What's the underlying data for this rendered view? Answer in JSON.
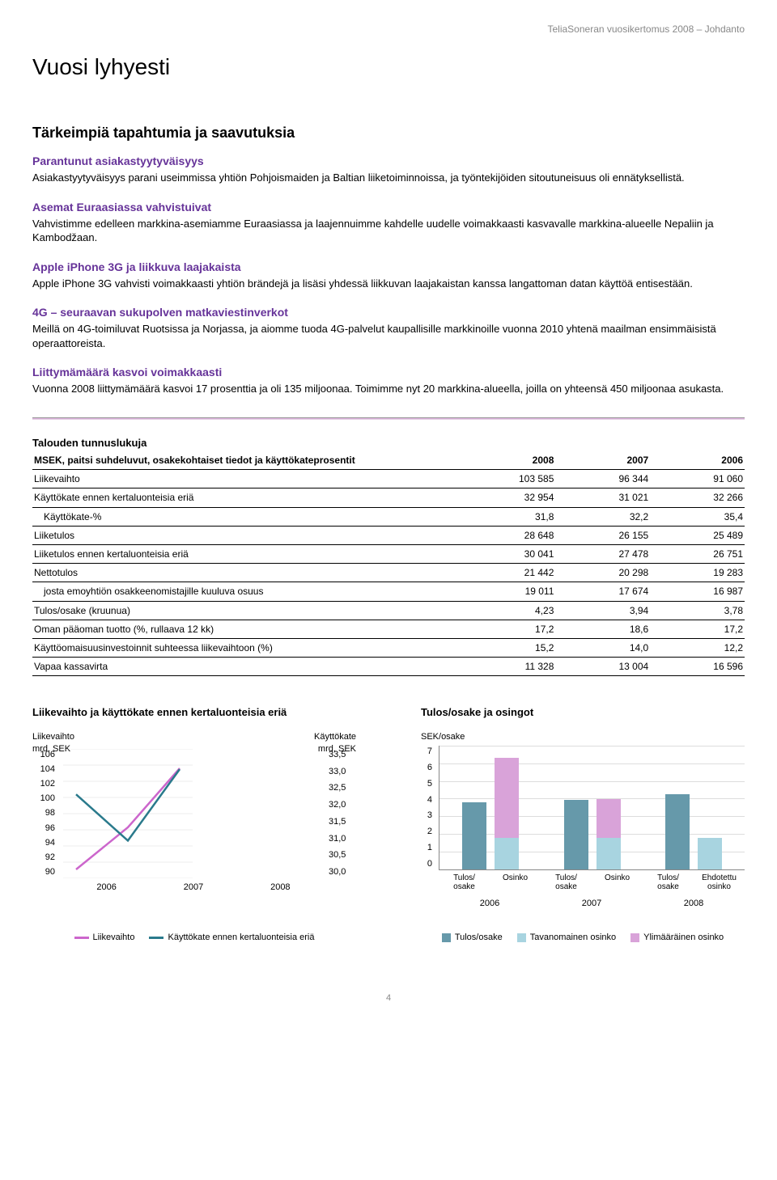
{
  "header": "TeliaSoneran vuosikertomus 2008 – Johdanto",
  "page_title": "Vuosi lyhyesti",
  "section_heading": "Tärkeimpiä tapahtumia ja saavutuksia",
  "blocks": [
    {
      "title": "Parantunut asiakastyytyväisyys",
      "body": "Asiakastyytyväisyys parani useimmissa yhtiön Pohjoismaiden ja Baltian liiketoiminnoissa, ja työntekijöiden sitoutuneisuus oli ennätyksellistä."
    },
    {
      "title": "Asemat Euraasiassa vahvistuivat",
      "body": "Vahvistimme edelleen markkina-asemiamme Euraasiassa ja laajennuimme kahdelle uudelle voimakkaasti kasvavalle markkina-alueelle Nepaliin ja Kambodžaan."
    },
    {
      "title": "Apple iPhone 3G ja liikkuva laajakaista",
      "body": "Apple iPhone 3G vahvisti voimakkaasti yhtiön brändejä ja lisäsi yhdessä liikkuvan laajakaistan kanssa langattoman datan käyttöä entisestään."
    },
    {
      "title": "4G – seuraavan sukupolven matkaviestinverkot",
      "body": "Meillä on 4G-toimiluvat Ruotsissa ja Norjassa, ja aiomme tuoda 4G-palvelut kaupallisille markkinoille vuonna 2010 yhtenä maailman ensimmäisistä operaattoreista."
    },
    {
      "title": "Liittymämäärä kasvoi voimakkaasti",
      "body": "Vuonna 2008 liittymämäärä kasvoi 17 prosenttia ja oli 135 miljoonaa. Toimimme nyt 20 markkina-alueella, joilla on yhteensä 450 miljoonaa asukasta."
    }
  ],
  "fin": {
    "title": "Talouden tunnuslukuja",
    "subtitle": "MSEK, paitsi suhdeluvut, osakekohtaiset tiedot ja käyttökateprosentit",
    "years": [
      "2008",
      "2007",
      "2006"
    ],
    "rows": [
      {
        "label": "Liikevaihto",
        "vals": [
          "103 585",
          "96 344",
          "91 060"
        ]
      },
      {
        "label": "Käyttökate ennen kertaluonteisia eriä",
        "vals": [
          "32 954",
          "31 021",
          "32 266"
        ]
      },
      {
        "label": "Käyttökate-%",
        "indent": true,
        "vals": [
          "31,8",
          "32,2",
          "35,4"
        ]
      },
      {
        "label": "Liiketulos",
        "vals": [
          "28 648",
          "26 155",
          "25 489"
        ]
      },
      {
        "label": "Liiketulos ennen kertaluonteisia eriä",
        "vals": [
          "30 041",
          "27 478",
          "26 751"
        ]
      },
      {
        "label": "Nettotulos",
        "vals": [
          "21 442",
          "20 298",
          "19 283"
        ]
      },
      {
        "label": "josta emoyhtiön osakkeenomistajille kuuluva osuus",
        "indent": true,
        "vals": [
          "19 011",
          "17 674",
          "16 987"
        ]
      },
      {
        "label": "Tulos/osake (kruunua)",
        "vals": [
          "4,23",
          "3,94",
          "3,78"
        ]
      },
      {
        "label": "Oman pääoman tuotto (%, rullaava 12 kk)",
        "vals": [
          "17,2",
          "18,6",
          "17,2"
        ]
      },
      {
        "label": "Käyttöomaisuusinvestoinnit suhteessa liikevaihtoon (%)",
        "vals": [
          "15,2",
          "14,0",
          "12,2"
        ]
      },
      {
        "label": "Vapaa kassavirta",
        "vals": [
          "11 328",
          "13 004",
          "16 596"
        ]
      }
    ]
  },
  "line_chart": {
    "title": "Liikevaihto ja käyttökate ennen kertaluonteisia eriä",
    "left_axis": {
      "title": "Liikevaihto\nmrd. SEK",
      "ticks": [
        "106",
        "104",
        "102",
        "100",
        "98",
        "96",
        "94",
        "92",
        "90"
      ],
      "min": 90,
      "max": 106
    },
    "right_axis": {
      "title": "Käyttökate\nmrd. SEK",
      "ticks": [
        "33,5",
        "33,0",
        "32,5",
        "32,0",
        "31,5",
        "31,0",
        "30,5",
        "30,0"
      ],
      "min": 30.0,
      "max": 33.5
    },
    "x_labels": [
      "2006",
      "2007",
      "2008"
    ],
    "series": [
      {
        "name": "Liikevaihto",
        "color": "#cc66cc",
        "axis": "left",
        "values": [
          91.1,
          96.3,
          103.6
        ]
      },
      {
        "name": "Käyttökate ennen kertaluonteisia eriä",
        "color": "#2a7a8c",
        "axis": "right",
        "values": [
          32.27,
          31.02,
          32.95
        ]
      }
    ],
    "legend": [
      {
        "label": "Liikevaihto",
        "color": "#cc66cc"
      },
      {
        "label": "Käyttökate ennen kertaluonteisia eriä",
        "color": "#2a7a8c"
      }
    ]
  },
  "bar_chart": {
    "title": "Tulos/osake ja osingot",
    "y_axis": {
      "title": "SEK/osake",
      "ticks": [
        "7",
        "6",
        "5",
        "4",
        "3",
        "2",
        "1",
        "0"
      ],
      "min": 0,
      "max": 7
    },
    "years": [
      "2006",
      "2007",
      "2008"
    ],
    "groups": [
      {
        "year": "2006",
        "bars": [
          {
            "label": "Tulos/\nosake",
            "value": 3.78,
            "color": "#6699aa"
          },
          {
            "label": "Osinko",
            "value": 6.3,
            "segments": [
              {
                "v": 1.8,
                "color": "#a8d4e0"
              },
              {
                "v": 4.5,
                "color": "#d9a3d9"
              }
            ]
          }
        ]
      },
      {
        "year": "2007",
        "bars": [
          {
            "label": "Tulos/\nosake",
            "value": 3.94,
            "color": "#6699aa"
          },
          {
            "label": "Osinko",
            "value": 4.0,
            "segments": [
              {
                "v": 1.8,
                "color": "#a8d4e0"
              },
              {
                "v": 2.2,
                "color": "#d9a3d9"
              }
            ]
          }
        ]
      },
      {
        "year": "2008",
        "bars": [
          {
            "label": "Tulos/\nosake",
            "value": 4.23,
            "color": "#6699aa"
          },
          {
            "label": "Ehdotettu\nosinko",
            "value": 1.8,
            "color": "#a8d4e0"
          }
        ]
      }
    ],
    "legend": [
      {
        "label": "Tulos/osake",
        "color": "#6699aa"
      },
      {
        "label": "Tavanomainen osinko",
        "color": "#a8d4e0"
      },
      {
        "label": "Ylimääräinen osinko",
        "color": "#d9a3d9"
      }
    ]
  },
  "page_number": "4"
}
